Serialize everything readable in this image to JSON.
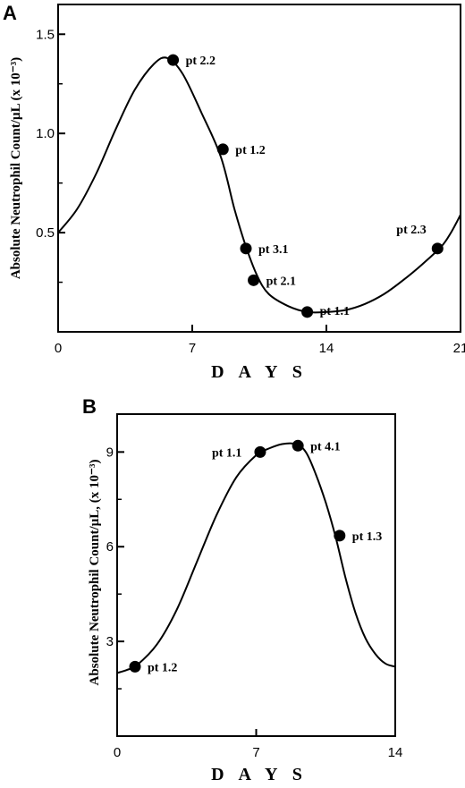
{
  "chart_data": [
    {
      "panel": "A",
      "type": "line",
      "xlabel": "D A Y S",
      "ylabel": "Absolute Neutrophil Count/µL (x 10⁻³)",
      "xlim": [
        0,
        21
      ],
      "ylim": [
        0,
        1.65
      ],
      "x_ticks": [
        0,
        7,
        14,
        21
      ],
      "x_tick_labels": [
        "0",
        "7",
        "14",
        "21"
      ],
      "y_ticks": [
        0.5,
        1.0,
        1.5
      ],
      "y_tick_labels": [
        "0.5",
        "1.0",
        "1.5"
      ],
      "y_minor_ticks": [
        0.25,
        0.75,
        1.25
      ],
      "curve": {
        "x": [
          0,
          1,
          2,
          3,
          4,
          5,
          5.7,
          6.5,
          7.5,
          8.5,
          9.2,
          9.8,
          10.4,
          11,
          12,
          13,
          14,
          15,
          16,
          17,
          18,
          19,
          20,
          20.5,
          21
        ],
        "y": [
          0.5,
          0.62,
          0.8,
          1.02,
          1.22,
          1.35,
          1.38,
          1.3,
          1.1,
          0.88,
          0.62,
          0.43,
          0.28,
          0.19,
          0.13,
          0.1,
          0.1,
          0.11,
          0.14,
          0.19,
          0.26,
          0.34,
          0.43,
          0.5,
          0.59
        ]
      },
      "points": [
        {
          "x": 6,
          "y": 1.37,
          "label": "pt 2.2"
        },
        {
          "x": 8.6,
          "y": 0.92,
          "label": "pt 1.2"
        },
        {
          "x": 9.8,
          "y": 0.42,
          "label": "pt 3.1"
        },
        {
          "x": 10.2,
          "y": 0.26,
          "label": "pt 2.1"
        },
        {
          "x": 13,
          "y": 0.1,
          "label": "pt 1.1"
        },
        {
          "x": 19.8,
          "y": 0.42,
          "label": "pt 2.3"
        }
      ]
    },
    {
      "panel": "B",
      "type": "line",
      "xlabel": "D A Y S",
      "ylabel": "Absolute Neutrophil Count/µL, (x 10⁻³)",
      "xlim": [
        0,
        14
      ],
      "ylim": [
        0,
        10.2
      ],
      "x_ticks": [
        0,
        7,
        14
      ],
      "x_tick_labels": [
        "0",
        "7",
        "14"
      ],
      "y_ticks": [
        3,
        6,
        9
      ],
      "y_tick_labels": [
        "3",
        "6",
        "9"
      ],
      "y_minor_ticks": [
        1.5,
        4.5,
        7.5
      ],
      "curve": {
        "x": [
          0,
          0.5,
          1,
          2,
          3,
          4,
          5,
          6,
          7,
          7.6,
          8.3,
          9,
          9.5,
          10,
          10.5,
          11,
          11.5,
          12,
          12.5,
          13,
          13.5,
          14
        ],
        "y": [
          2.0,
          2.1,
          2.25,
          2.9,
          4.0,
          5.5,
          7.0,
          8.2,
          8.9,
          9.1,
          9.25,
          9.25,
          9.0,
          8.3,
          7.4,
          6.3,
          5.0,
          3.9,
          3.1,
          2.6,
          2.3,
          2.2
        ]
      },
      "points": [
        {
          "x": 0.9,
          "y": 2.2,
          "label": "pt 1.2"
        },
        {
          "x": 7.2,
          "y": 9.0,
          "label": "pt 1.1"
        },
        {
          "x": 9.1,
          "y": 9.2,
          "label": "pt 4.1"
        },
        {
          "x": 11.2,
          "y": 6.35,
          "label": "pt 1.3"
        }
      ]
    }
  ]
}
